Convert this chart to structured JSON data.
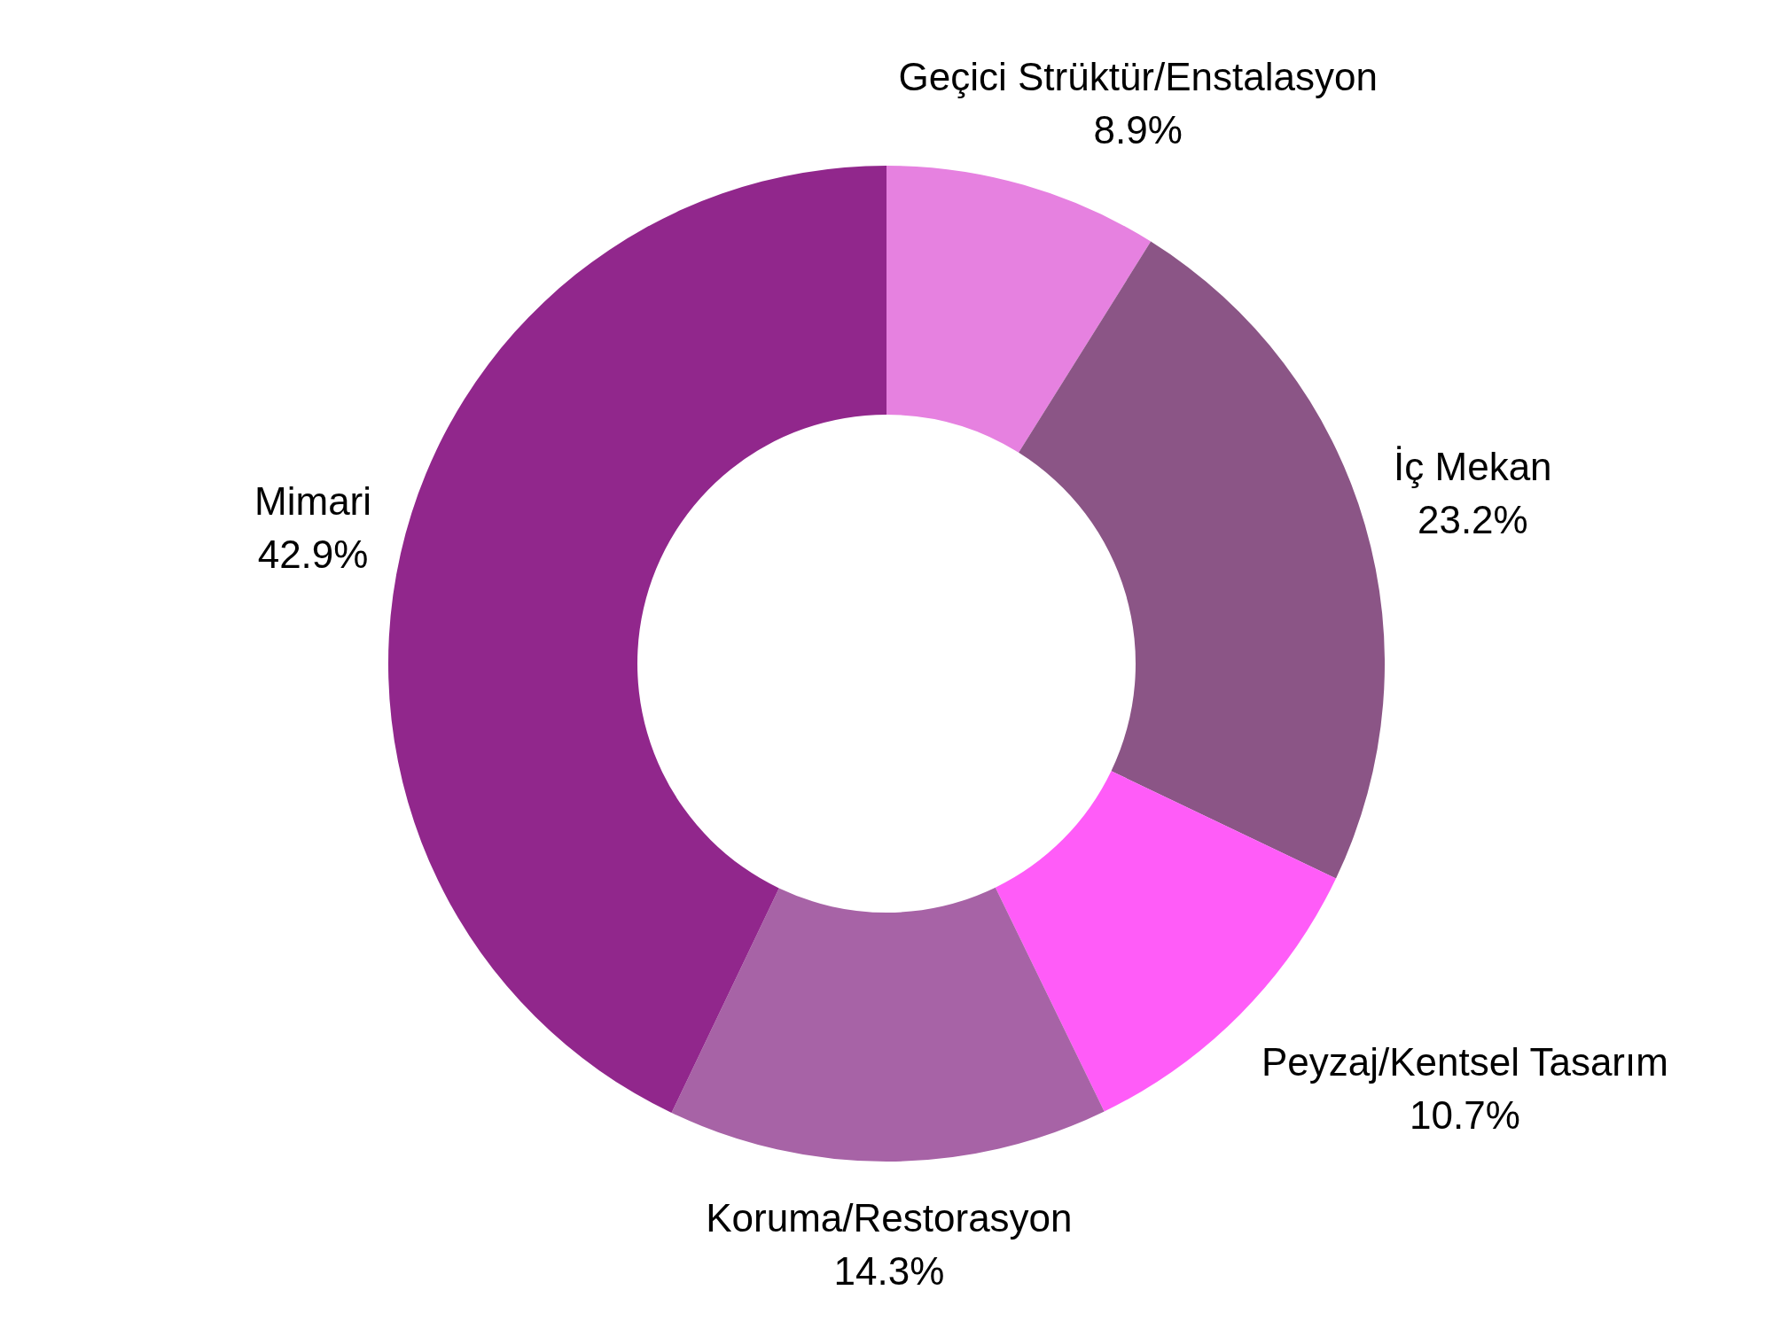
{
  "chart_data": {
    "type": "donut",
    "categories": [
      "Geçici Strüktür/Enstalasyon",
      "İç Mekan",
      "Peyzaj/Kentsel Tasarım",
      "Koruma/Restorasyon",
      "Mimari"
    ],
    "values": [
      8.9,
      23.2,
      10.7,
      14.3,
      42.9
    ],
    "colors": [
      "#e681e0",
      "#8b5586",
      "#ff5cf8",
      "#a763a6",
      "#91278c"
    ],
    "value_labels": [
      "8.9%",
      "23.2%",
      "10.7%",
      "14.3%",
      "42.9%"
    ]
  }
}
